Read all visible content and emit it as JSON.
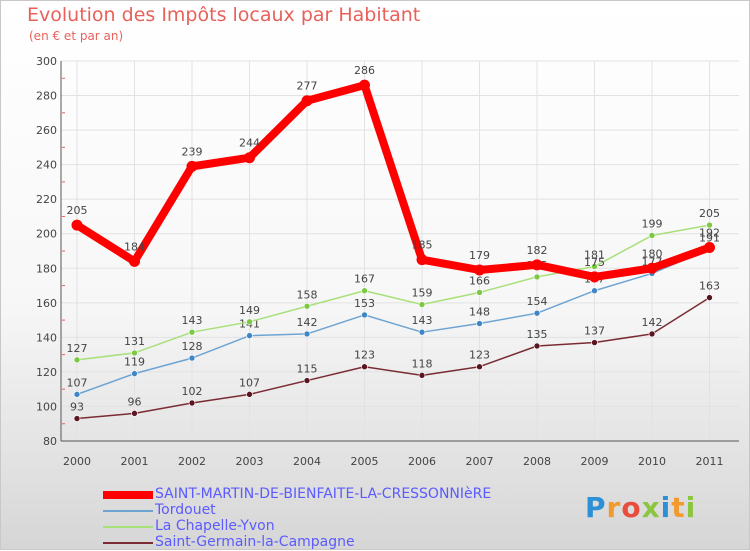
{
  "title": "Evolution des Impôts locaux par Habitant",
  "subtitle": "(en € et par an)",
  "logo": {
    "text": "Proxiti",
    "colors": [
      "#2d8fd5",
      "#f29a2e",
      "#e84c3d",
      "#8cc63f",
      "#2d8fd5",
      "#f29a2e",
      "#8cc63f"
    ]
  },
  "chart_data": {
    "type": "line",
    "title": "Evolution des Impôts locaux par Habitant",
    "subtitle": "(en € et par an)",
    "xlabel": "",
    "ylabel": "",
    "ylim": [
      80,
      300
    ],
    "yticks": [
      "80",
      "100",
      "120",
      "140",
      "160",
      "180",
      "200",
      "220",
      "240",
      "260",
      "280",
      "300"
    ],
    "x": [
      "2000",
      "2001",
      "2002",
      "2003",
      "2004",
      "2005",
      "2006",
      "2007",
      "2008",
      "2009",
      "2010",
      "2011"
    ],
    "grid": true,
    "legend": "bottom-left",
    "series": [
      {
        "name": "SAINT-MARTIN-DE-BIENFAITE-LA-CRESSONNIèRE",
        "color": "#ff0000",
        "marker": "#ff0000",
        "emphasis": true,
        "values": [
          205,
          184,
          239,
          244,
          277,
          286,
          185,
          179,
          182,
          175,
          180,
          192
        ]
      },
      {
        "name": "Tordouet",
        "color": "#6da4d3",
        "marker": "#3e86c8",
        "values": [
          107,
          119,
          128,
          141,
          142,
          153,
          143,
          148,
          154,
          167,
          177,
          191
        ]
      },
      {
        "name": "La Chapelle-Yvon",
        "color": "#a8e07a",
        "marker": "#7bc943",
        "values": [
          127,
          131,
          143,
          149,
          158,
          167,
          159,
          166,
          175,
          181,
          199,
          205
        ]
      },
      {
        "name": "Saint-Germain-la-Campagne",
        "color": "#7a2b33",
        "marker": "#5a1520",
        "values": [
          93,
          96,
          102,
          107,
          115,
          123,
          118,
          123,
          135,
          137,
          142,
          163
        ]
      }
    ]
  }
}
